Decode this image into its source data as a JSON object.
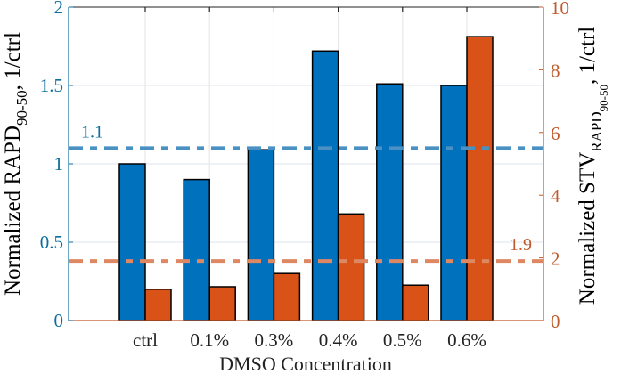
{
  "chart_data": {
    "type": "bar",
    "title": "",
    "xlabel": "DMSO Concentration",
    "ylabel_left": {
      "main": "Normalized RAPD",
      "sub": "90-50",
      "suffix": ", 1/ctrl"
    },
    "ylabel_right": {
      "main": "Normalized STV",
      "sub": "RAPD",
      "subsub": "90-50",
      "suffix": ", 1/ctrl"
    },
    "categories": [
      "ctrl",
      "0.1%",
      "0.3%",
      "0.4%",
      "0.5%",
      "0.6%"
    ],
    "ylim_left": [
      0,
      2
    ],
    "ylim_right": [
      0,
      10
    ],
    "yticks_left": [
      "0",
      "0.5",
      "1",
      "1.5",
      "2"
    ],
    "yticks_right": [
      "0",
      "2",
      "4",
      "6",
      "8",
      "10"
    ],
    "grid": true,
    "series": [
      {
        "name": "Normalized RAPD90-50",
        "axis": "left",
        "color": "#0072BD",
        "values": [
          1.0,
          0.9,
          1.09,
          1.72,
          1.51,
          1.5
        ]
      },
      {
        "name": "Normalized STV RAPD90-50",
        "axis": "right",
        "color": "#D95319",
        "values": [
          1.0,
          1.08,
          1.5,
          3.4,
          1.13,
          9.06
        ]
      }
    ],
    "reference_lines": [
      {
        "axis": "left",
        "value": 1.1,
        "label": "1.1",
        "color": "#4A90C2"
      },
      {
        "axis": "right",
        "value": 1.9,
        "label": "1.9",
        "color": "#DD8763"
      }
    ],
    "axis_colors": {
      "left": "#0E6E9E",
      "right": "#C0592B"
    }
  }
}
